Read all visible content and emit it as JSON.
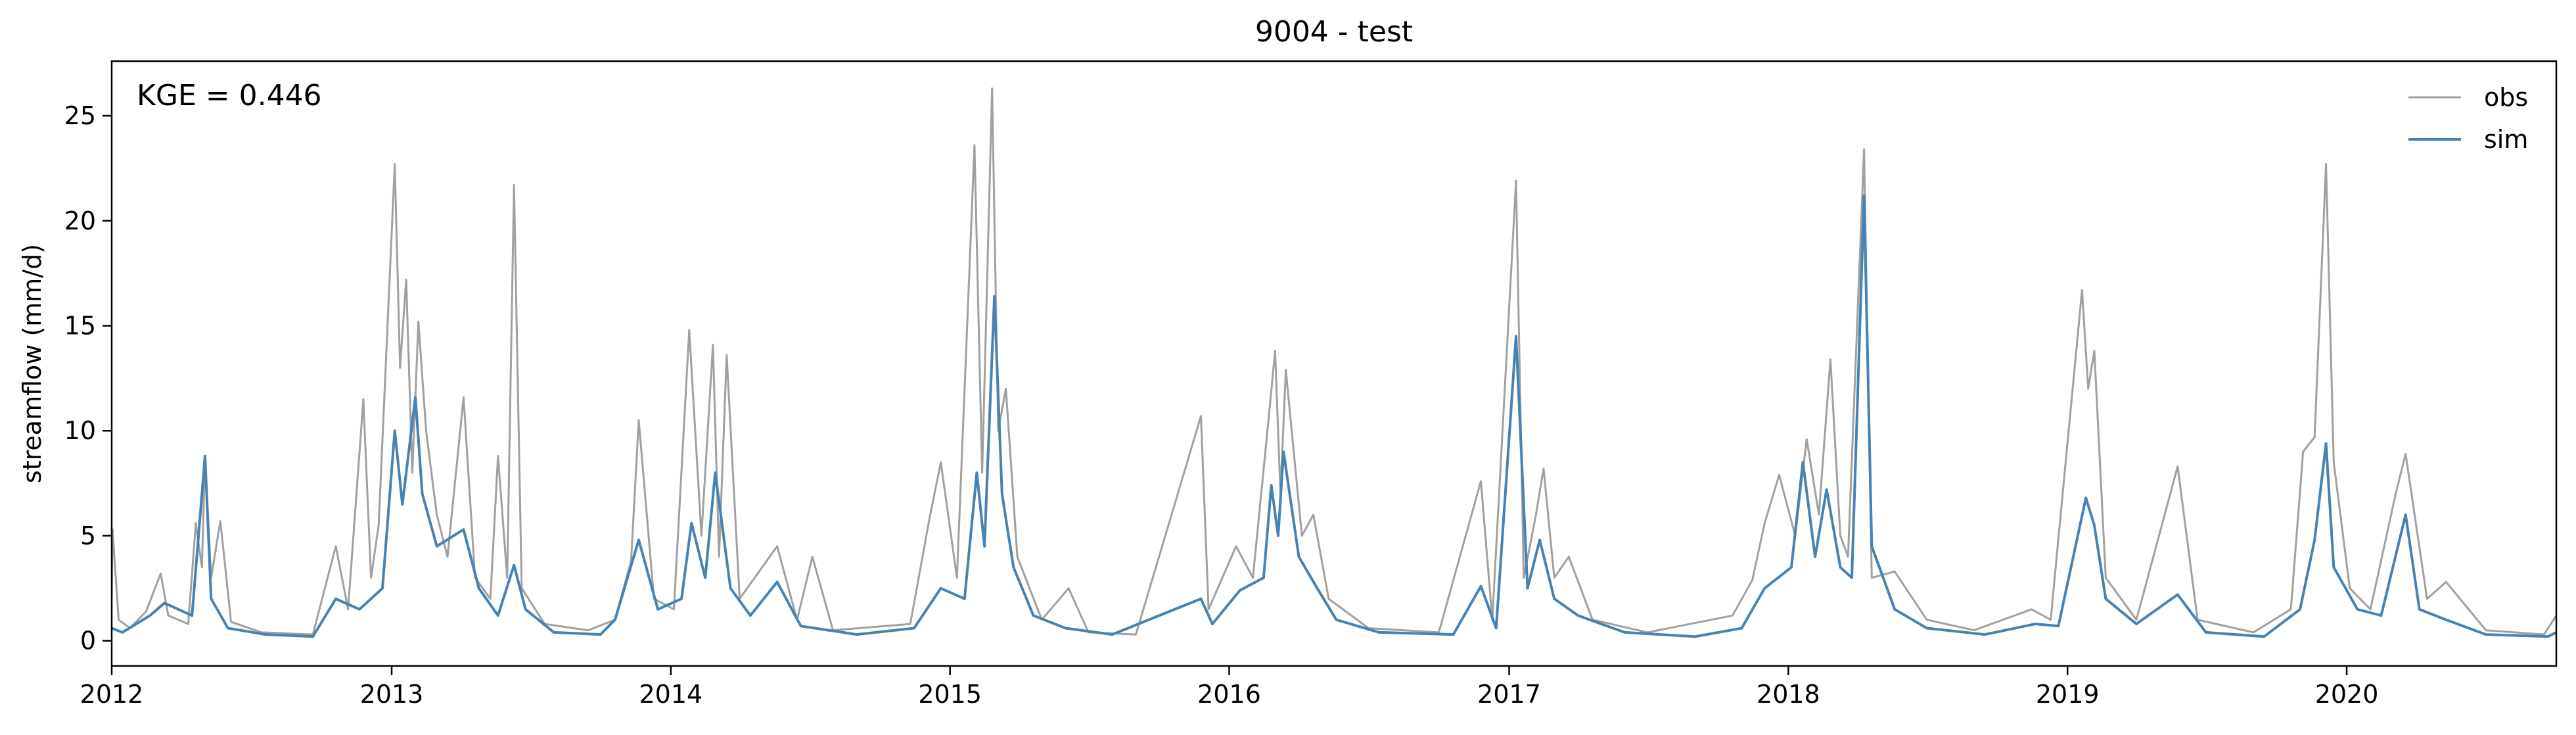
{
  "chart_data": {
    "type": "line",
    "title": "9004 - test",
    "xlabel": "",
    "ylabel": "streamflow (mm/d)",
    "annotation": "KGE = 0.446",
    "x_axis_type": "date",
    "xlim": [
      "2012-01-01",
      "2020-10-01"
    ],
    "ylim": [
      -1.2,
      27.6
    ],
    "x_ticks": [
      "2012",
      "2013",
      "2014",
      "2015",
      "2016",
      "2017",
      "2018",
      "2019",
      "2020"
    ],
    "y_ticks": [
      0,
      5,
      10,
      15,
      20,
      25
    ],
    "grid": false,
    "legend_position": "top-right",
    "series": [
      {
        "name": "obs",
        "color": "#a0a0a0",
        "points": [
          [
            "2012-01-01",
            2.0
          ],
          [
            "2012-01-02",
            5.3
          ],
          [
            "2012-01-10",
            1.0
          ],
          [
            "2012-01-25",
            0.6
          ],
          [
            "2012-02-15",
            1.4
          ],
          [
            "2012-03-05",
            3.2
          ],
          [
            "2012-03-15",
            1.2
          ],
          [
            "2012-04-10",
            0.8
          ],
          [
            "2012-04-20",
            5.6
          ],
          [
            "2012-04-28",
            3.5
          ],
          [
            "2012-05-02",
            8.8
          ],
          [
            "2012-05-10",
            3.0
          ],
          [
            "2012-05-22",
            5.7
          ],
          [
            "2012-06-05",
            0.9
          ],
          [
            "2012-07-15",
            0.4
          ],
          [
            "2012-09-20",
            0.3
          ],
          [
            "2012-10-20",
            4.5
          ],
          [
            "2012-11-05",
            1.5
          ],
          [
            "2012-11-25",
            11.5
          ],
          [
            "2012-12-05",
            3.0
          ],
          [
            "2012-12-15",
            5.5
          ],
          [
            "2013-01-05",
            22.7
          ],
          [
            "2013-01-12",
            13.0
          ],
          [
            "2013-01-20",
            17.2
          ],
          [
            "2013-01-28",
            8.0
          ],
          [
            "2013-02-05",
            15.2
          ],
          [
            "2013-02-15",
            10.0
          ],
          [
            "2013-03-01",
            6.0
          ],
          [
            "2013-03-15",
            4.0
          ],
          [
            "2013-04-05",
            11.6
          ],
          [
            "2013-04-20",
            3.0
          ],
          [
            "2013-05-10",
            2.0
          ],
          [
            "2013-05-20",
            8.8
          ],
          [
            "2013-06-01",
            3.0
          ],
          [
            "2013-06-10",
            21.7
          ],
          [
            "2013-06-20",
            2.5
          ],
          [
            "2013-07-20",
            0.8
          ],
          [
            "2013-09-15",
            0.5
          ],
          [
            "2013-10-20",
            1.0
          ],
          [
            "2013-11-10",
            3.8
          ],
          [
            "2013-11-20",
            10.5
          ],
          [
            "2013-12-10",
            2.0
          ],
          [
            "2014-01-05",
            1.5
          ],
          [
            "2014-01-25",
            14.8
          ],
          [
            "2014-02-10",
            5.0
          ],
          [
            "2014-02-25",
            14.1
          ],
          [
            "2014-03-05",
            4.0
          ],
          [
            "2014-03-15",
            13.6
          ],
          [
            "2014-04-01",
            2.0
          ],
          [
            "2014-05-20",
            4.5
          ],
          [
            "2014-06-15",
            1.0
          ],
          [
            "2014-07-05",
            4.0
          ],
          [
            "2014-08-01",
            0.5
          ],
          [
            "2014-11-10",
            0.8
          ],
          [
            "2014-12-05",
            5.8
          ],
          [
            "2014-12-20",
            8.5
          ],
          [
            "2015-01-10",
            3.0
          ],
          [
            "2015-02-02",
            23.6
          ],
          [
            "2015-02-12",
            8.0
          ],
          [
            "2015-02-25",
            26.3
          ],
          [
            "2015-03-05",
            10.0
          ],
          [
            "2015-03-15",
            12.0
          ],
          [
            "2015-03-30",
            4.0
          ],
          [
            "2015-05-01",
            1.0
          ],
          [
            "2015-06-05",
            2.5
          ],
          [
            "2015-07-01",
            0.4
          ],
          [
            "2015-09-01",
            0.3
          ],
          [
            "2015-11-25",
            10.7
          ],
          [
            "2015-12-05",
            1.5
          ],
          [
            "2016-01-10",
            4.5
          ],
          [
            "2016-02-01",
            3.0
          ],
          [
            "2016-02-20",
            10.0
          ],
          [
            "2016-03-01",
            13.8
          ],
          [
            "2016-03-08",
            7.0
          ],
          [
            "2016-03-15",
            12.9
          ],
          [
            "2016-04-05",
            5.0
          ],
          [
            "2016-04-20",
            6.0
          ],
          [
            "2016-05-10",
            2.0
          ],
          [
            "2016-07-01",
            0.6
          ],
          [
            "2016-10-01",
            0.4
          ],
          [
            "2016-11-25",
            7.6
          ],
          [
            "2016-12-10",
            1.0
          ],
          [
            "2017-01-10",
            21.9
          ],
          [
            "2017-01-20",
            3.0
          ],
          [
            "2017-02-05",
            6.0
          ],
          [
            "2017-02-15",
            8.2
          ],
          [
            "2017-03-01",
            3.0
          ],
          [
            "2017-03-20",
            4.0
          ],
          [
            "2017-04-20",
            1.0
          ],
          [
            "2017-07-01",
            0.4
          ],
          [
            "2017-10-20",
            1.2
          ],
          [
            "2017-11-15",
            2.9
          ],
          [
            "2017-12-01",
            5.6
          ],
          [
            "2017-12-20",
            7.9
          ],
          [
            "2018-01-10",
            5.0
          ],
          [
            "2018-01-25",
            9.6
          ],
          [
            "2018-02-10",
            6.0
          ],
          [
            "2018-02-25",
            13.4
          ],
          [
            "2018-03-10",
            5.0
          ],
          [
            "2018-03-20",
            4.0
          ],
          [
            "2018-04-10",
            23.4
          ],
          [
            "2018-04-20",
            3.0
          ],
          [
            "2018-05-20",
            3.3
          ],
          [
            "2018-07-01",
            1.0
          ],
          [
            "2018-09-01",
            0.5
          ],
          [
            "2018-11-15",
            1.5
          ],
          [
            "2018-12-10",
            1.0
          ],
          [
            "2019-01-20",
            16.7
          ],
          [
            "2019-01-28",
            12.0
          ],
          [
            "2019-02-05",
            13.8
          ],
          [
            "2019-02-20",
            3.0
          ],
          [
            "2019-04-01",
            1.0
          ],
          [
            "2019-05-25",
            8.3
          ],
          [
            "2019-06-20",
            1.0
          ],
          [
            "2019-09-01",
            0.4
          ],
          [
            "2019-10-20",
            1.5
          ],
          [
            "2019-11-05",
            9.0
          ],
          [
            "2019-11-20",
            9.7
          ],
          [
            "2019-12-05",
            22.7
          ],
          [
            "2019-12-15",
            8.5
          ],
          [
            "2020-01-05",
            2.5
          ],
          [
            "2020-02-01",
            1.5
          ],
          [
            "2020-03-05",
            7.0
          ],
          [
            "2020-03-18",
            8.9
          ],
          [
            "2020-04-15",
            2.0
          ],
          [
            "2020-05-10",
            2.8
          ],
          [
            "2020-07-01",
            0.5
          ],
          [
            "2020-09-15",
            0.3
          ],
          [
            "2020-10-01",
            1.2
          ]
        ]
      },
      {
        "name": "sim",
        "color": "#4682b4",
        "points": [
          [
            "2012-01-01",
            0.6
          ],
          [
            "2012-01-15",
            0.4
          ],
          [
            "2012-02-20",
            1.2
          ],
          [
            "2012-03-10",
            1.8
          ],
          [
            "2012-04-15",
            1.2
          ],
          [
            "2012-05-02",
            8.8
          ],
          [
            "2012-05-10",
            2.0
          ],
          [
            "2012-06-01",
            0.6
          ],
          [
            "2012-07-20",
            0.3
          ],
          [
            "2012-09-20",
            0.2
          ],
          [
            "2012-10-20",
            2.0
          ],
          [
            "2012-11-20",
            1.5
          ],
          [
            "2012-12-20",
            2.5
          ],
          [
            "2013-01-05",
            10.0
          ],
          [
            "2013-01-15",
            6.5
          ],
          [
            "2013-02-01",
            11.6
          ],
          [
            "2013-02-10",
            7.0
          ],
          [
            "2013-03-01",
            4.5
          ],
          [
            "2013-04-05",
            5.3
          ],
          [
            "2013-04-25",
            2.5
          ],
          [
            "2013-05-20",
            1.2
          ],
          [
            "2013-06-10",
            3.6
          ],
          [
            "2013-06-25",
            1.5
          ],
          [
            "2013-08-01",
            0.4
          ],
          [
            "2013-10-01",
            0.3
          ],
          [
            "2013-10-20",
            1.0
          ],
          [
            "2013-11-20",
            4.8
          ],
          [
            "2013-12-15",
            1.5
          ],
          [
            "2014-01-15",
            2.0
          ],
          [
            "2014-01-28",
            5.6
          ],
          [
            "2014-02-15",
            3.0
          ],
          [
            "2014-02-28",
            8.0
          ],
          [
            "2014-03-20",
            2.5
          ],
          [
            "2014-04-15",
            1.2
          ],
          [
            "2014-05-20",
            2.8
          ],
          [
            "2014-06-20",
            0.7
          ],
          [
            "2014-09-01",
            0.3
          ],
          [
            "2014-11-15",
            0.6
          ],
          [
            "2014-12-20",
            2.5
          ],
          [
            "2015-01-20",
            2.0
          ],
          [
            "2015-02-05",
            8.0
          ],
          [
            "2015-02-15",
            4.5
          ],
          [
            "2015-02-28",
            16.4
          ],
          [
            "2015-03-10",
            7.0
          ],
          [
            "2015-03-25",
            3.5
          ],
          [
            "2015-04-20",
            1.2
          ],
          [
            "2015-06-01",
            0.6
          ],
          [
            "2015-08-01",
            0.3
          ],
          [
            "2015-11-25",
            2.0
          ],
          [
            "2015-12-10",
            0.8
          ],
          [
            "2016-01-15",
            2.4
          ],
          [
            "2016-02-15",
            3.0
          ],
          [
            "2016-02-25",
            7.4
          ],
          [
            "2016-03-05",
            5.0
          ],
          [
            "2016-03-12",
            9.0
          ],
          [
            "2016-04-01",
            4.0
          ],
          [
            "2016-04-25",
            2.5
          ],
          [
            "2016-05-20",
            1.0
          ],
          [
            "2016-07-15",
            0.4
          ],
          [
            "2016-10-20",
            0.3
          ],
          [
            "2016-11-25",
            2.6
          ],
          [
            "2016-12-15",
            0.6
          ],
          [
            "2017-01-10",
            14.5
          ],
          [
            "2017-01-25",
            2.5
          ],
          [
            "2017-02-10",
            4.8
          ],
          [
            "2017-03-01",
            2.0
          ],
          [
            "2017-04-01",
            1.2
          ],
          [
            "2017-06-01",
            0.4
          ],
          [
            "2017-09-01",
            0.2
          ],
          [
            "2017-11-01",
            0.6
          ],
          [
            "2017-12-01",
            2.5
          ],
          [
            "2018-01-05",
            3.5
          ],
          [
            "2018-01-20",
            8.5
          ],
          [
            "2018-02-05",
            4.0
          ],
          [
            "2018-02-20",
            7.2
          ],
          [
            "2018-03-10",
            3.5
          ],
          [
            "2018-03-25",
            3.0
          ],
          [
            "2018-04-10",
            21.2
          ],
          [
            "2018-04-20",
            4.5
          ],
          [
            "2018-05-20",
            1.5
          ],
          [
            "2018-07-01",
            0.6
          ],
          [
            "2018-09-15",
            0.3
          ],
          [
            "2018-11-20",
            0.8
          ],
          [
            "2018-12-20",
            0.7
          ],
          [
            "2019-01-25",
            6.8
          ],
          [
            "2019-02-05",
            5.5
          ],
          [
            "2019-02-20",
            2.0
          ],
          [
            "2019-04-01",
            0.8
          ],
          [
            "2019-05-25",
            2.2
          ],
          [
            "2019-07-01",
            0.4
          ],
          [
            "2019-09-15",
            0.2
          ],
          [
            "2019-11-01",
            1.5
          ],
          [
            "2019-11-20",
            4.8
          ],
          [
            "2019-12-05",
            9.4
          ],
          [
            "2019-12-15",
            3.5
          ],
          [
            "2020-01-15",
            1.5
          ],
          [
            "2020-02-15",
            1.2
          ],
          [
            "2020-03-18",
            6.0
          ],
          [
            "2020-04-05",
            1.5
          ],
          [
            "2020-05-10",
            1.0
          ],
          [
            "2020-07-01",
            0.3
          ],
          [
            "2020-09-20",
            0.2
          ],
          [
            "2020-10-01",
            0.4
          ]
        ]
      }
    ]
  }
}
